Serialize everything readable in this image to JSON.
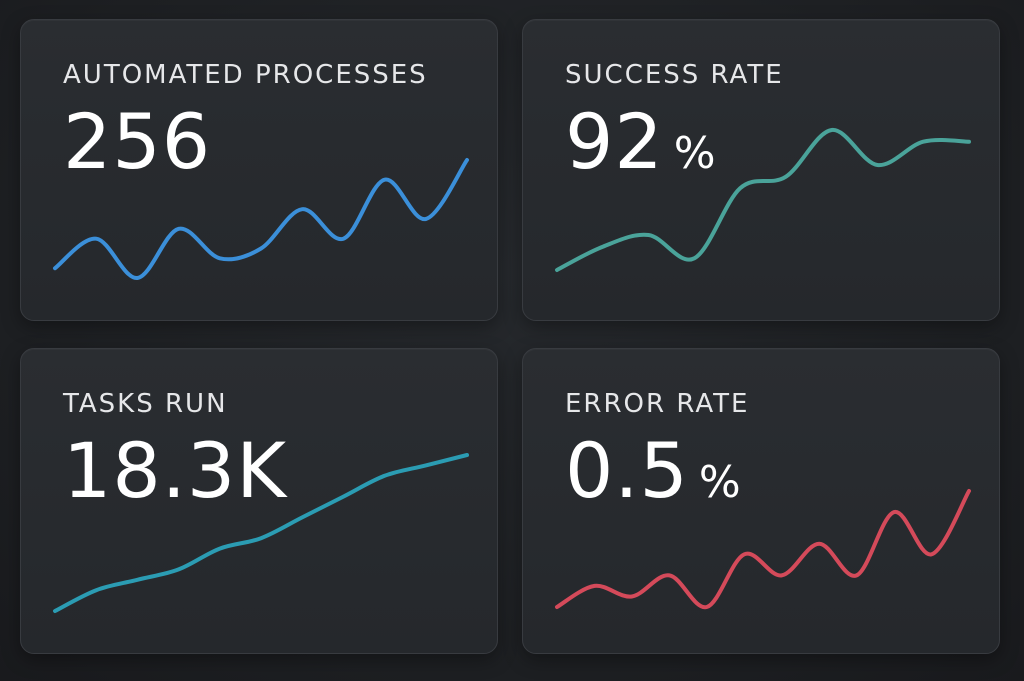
{
  "cards": [
    {
      "title": "AUTOMATED PROCESSES",
      "value": "256",
      "unit": "",
      "color": "#3b8fd9",
      "trend": [
        2,
        5,
        1,
        6,
        3,
        4,
        8,
        5,
        11,
        7,
        13
      ]
    },
    {
      "title": "SUCCESS RATE",
      "value": "92",
      "unit": "%",
      "color": "#4aa39a",
      "trend": [
        1,
        3,
        4,
        2,
        8,
        9,
        13,
        10,
        12,
        12
      ]
    },
    {
      "title": "TASKS RUN",
      "value": "18.3K",
      "unit": "",
      "color": "#2b9cb3",
      "trend": [
        1,
        3,
        4,
        5,
        7,
        8,
        10,
        12,
        14,
        15,
        16
      ]
    },
    {
      "title": "ERROR RATE",
      "value": "0.5",
      "unit": "%",
      "color": "#d44a5a",
      "trend": [
        2,
        4,
        3,
        5,
        2,
        7,
        5,
        8,
        5,
        11,
        7,
        13
      ]
    }
  ]
}
